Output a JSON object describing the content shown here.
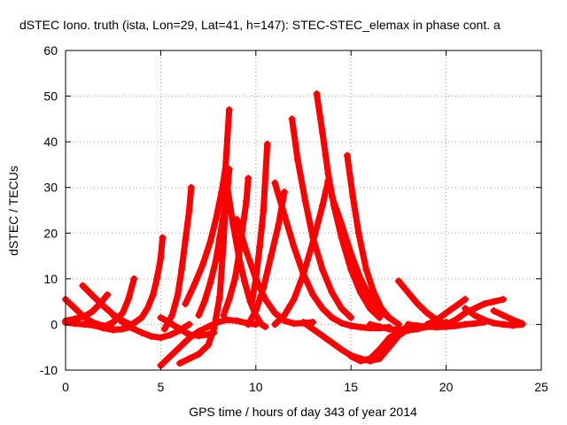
{
  "chart_data": {
    "type": "scatter",
    "title": "dSTEC Iono. truth (ista, Lon=29, Lat=41, h=147): STEC-STEC_elemax in phase cont. a",
    "xlabel": "GPS time / hours of day 343 of year 2014",
    "ylabel": "dSTEC  / TECUs",
    "xlim": [
      0,
      25
    ],
    "ylim": [
      -10,
      60
    ],
    "xticks": [
      0,
      5,
      10,
      15,
      20,
      25
    ],
    "yticks": [
      -10,
      0,
      10,
      20,
      30,
      40,
      50,
      60
    ],
    "grid": true,
    "legend": "none",
    "marker": "+",
    "color": "#ff0000",
    "series": [
      {
        "x": [
          0.0,
          0.5,
          1.0,
          1.5,
          2.0,
          2.4
        ],
        "y": [
          5.5,
          3.5,
          1.5,
          0.3,
          -0.3,
          -0.5
        ]
      },
      {
        "x": [
          0.0,
          0.5,
          1.0,
          1.5,
          2.0,
          2.5,
          3.0,
          3.5
        ],
        "y": [
          0.4,
          0.2,
          0.0,
          -0.2,
          -0.8,
          -1.2,
          -1.0,
          -0.5
        ]
      },
      {
        "x": [
          0.0,
          0.5,
          1.0,
          1.4,
          1.8,
          2.2
        ],
        "y": [
          0.8,
          1.2,
          1.8,
          2.8,
          4.5,
          6.5
        ]
      },
      {
        "x": [
          0.9,
          1.5,
          2.0,
          2.5,
          3.0,
          3.4
        ],
        "y": [
          8.5,
          6.0,
          4.0,
          2.2,
          0.8,
          0.0
        ]
      },
      {
        "x": [
          2.0,
          2.5,
          3.0,
          3.3,
          3.6
        ],
        "y": [
          -0.5,
          0.5,
          2.5,
          5.5,
          10.0
        ]
      },
      {
        "x": [
          2.5,
          3.0,
          3.5,
          4.0,
          4.5,
          5.0,
          5.5,
          6.0,
          6.5
        ],
        "y": [
          2.0,
          0.5,
          -0.8,
          -1.8,
          -2.6,
          -2.9,
          -2.3,
          -1.3,
          0.0
        ]
      },
      {
        "x": [
          3.5,
          4.0,
          4.3,
          4.6,
          4.8,
          5.0,
          5.1
        ],
        "y": [
          0.0,
          1.5,
          3.5,
          6.5,
          10.0,
          14.5,
          19.0
        ]
      },
      {
        "x": [
          5.0,
          5.5,
          6.0,
          6.5,
          7.0,
          7.5,
          7.8
        ],
        "y": [
          1.5,
          0.3,
          -1.0,
          -2.2,
          -2.5,
          -2.2,
          -1.8
        ]
      },
      {
        "x": [
          5.0,
          5.5,
          6.0,
          6.5,
          7.0,
          7.5,
          8.0,
          8.5,
          9.0,
          9.5,
          10.0
        ],
        "y": [
          -9.0,
          -7.0,
          -5.0,
          -3.0,
          -1.5,
          -0.5,
          0.5,
          1.0,
          0.8,
          0.3,
          0.0
        ]
      },
      {
        "x": [
          5.2,
          5.6,
          5.9,
          6.1,
          6.3,
          6.5,
          6.6
        ],
        "y": [
          -1.0,
          2.0,
          6.5,
          12.0,
          18.5,
          25.0,
          30.0
        ]
      },
      {
        "x": [
          6.0,
          6.5,
          7.0,
          7.5,
          7.8,
          8.1,
          8.3,
          8.5
        ],
        "y": [
          -8.5,
          -7.5,
          -6.5,
          -4.5,
          -1.0,
          6.0,
          18.0,
          34.0
        ]
      },
      {
        "x": [
          6.3,
          6.8,
          7.2,
          7.6,
          7.9,
          8.2,
          8.4,
          8.6
        ],
        "y": [
          4.5,
          9.0,
          13.0,
          18.0,
          23.0,
          29.0,
          34.0,
          47.0
        ]
      },
      {
        "x": [
          7.0,
          7.3,
          7.6,
          7.9,
          8.1,
          8.3,
          8.5,
          8.6
        ],
        "y": [
          2.0,
          5.0,
          9.0,
          14.0,
          19.0,
          24.0,
          29.0,
          34.0
        ]
      },
      {
        "x": [
          8.5,
          8.8,
          9.1,
          9.4,
          9.7,
          10.0,
          10.3,
          10.5
        ],
        "y": [
          30.0,
          22.0,
          15.0,
          9.5,
          5.0,
          2.0,
          0.0,
          -0.5
        ]
      },
      {
        "x": [
          8.3,
          8.6,
          8.9,
          9.1,
          9.3,
          9.5,
          9.6
        ],
        "y": [
          2.0,
          5.5,
          10.0,
          15.0,
          21.0,
          27.0,
          32.0
        ]
      },
      {
        "x": [
          9.0,
          9.5,
          10.0,
          10.5,
          11.0,
          11.5,
          12.0,
          12.5,
          13.0
        ],
        "y": [
          23.0,
          16.0,
          10.0,
          5.5,
          2.5,
          0.8,
          0.2,
          0.3,
          0.5
        ]
      },
      {
        "x": [
          9.8,
          10.0,
          10.2,
          10.4,
          10.6
        ],
        "y": [
          5.0,
          10.0,
          17.0,
          25.0,
          39.5
        ]
      },
      {
        "x": [
          9.6,
          10.0,
          10.4,
          10.8,
          11.2,
          11.5
        ],
        "y": [
          0.0,
          3.0,
          8.0,
          15.0,
          22.0,
          29.0
        ]
      },
      {
        "x": [
          11.0,
          11.5,
          12.0,
          12.5,
          13.0,
          13.5,
          14.0,
          14.5,
          15.0,
          15.5,
          16.0,
          16.5,
          17.0
        ],
        "y": [
          31.0,
          24.0,
          17.0,
          11.0,
          6.5,
          3.5,
          1.5,
          0.3,
          -0.3,
          -0.6,
          -0.8,
          -0.8,
          -0.6
        ]
      },
      {
        "x": [
          11.9,
          12.2,
          12.6,
          13.0,
          13.5,
          14.0,
          14.5,
          15.0
        ],
        "y": [
          45.0,
          36.0,
          27.0,
          19.0,
          12.0,
          7.0,
          3.5,
          1.5
        ]
      },
      {
        "x": [
          13.2,
          13.5,
          13.8,
          14.1,
          14.5,
          15.0,
          15.5,
          16.0,
          16.5
        ],
        "y": [
          50.5,
          42.0,
          33.0,
          26.0,
          19.0,
          12.0,
          7.0,
          3.5,
          1.5
        ]
      },
      {
        "x": [
          11.0,
          11.5,
          12.0,
          12.5,
          13.0,
          13.5,
          13.8
        ],
        "y": [
          0.0,
          2.0,
          5.5,
          11.0,
          18.0,
          26.0,
          31.5
        ]
      },
      {
        "x": [
          12.5,
          13.0,
          13.5,
          14.0,
          14.5,
          15.0,
          15.5,
          16.0,
          16.5,
          17.0,
          17.5,
          18.0
        ],
        "y": [
          0.5,
          -1.0,
          -2.5,
          -4.0,
          -5.5,
          -6.8,
          -7.5,
          -8.0,
          -7.5,
          -5.0,
          -2.5,
          -1.0
        ]
      },
      {
        "x": [
          14.8,
          15.1,
          15.4,
          15.8,
          16.2,
          16.6,
          17.0,
          17.5
        ],
        "y": [
          37.0,
          28.0,
          20.0,
          12.0,
          7.0,
          3.5,
          1.5,
          0.0
        ]
      },
      {
        "x": [
          14.0,
          14.5,
          15.0,
          15.5,
          16.0,
          16.5,
          17.0
        ],
        "y": [
          28.0,
          22.0,
          15.5,
          10.0,
          6.0,
          3.0,
          1.5
        ]
      },
      {
        "x": [
          15.0,
          15.5,
          16.0,
          16.5,
          17.0,
          17.5,
          18.0
        ],
        "y": [
          -7.0,
          -8.0,
          -7.5,
          -5.5,
          -3.0,
          -1.5,
          -0.5
        ]
      },
      {
        "x": [
          16.0,
          16.5,
          17.0,
          17.5,
          18.0,
          18.5,
          19.0,
          19.5,
          20.0
        ],
        "y": [
          0.0,
          -0.5,
          -1.0,
          -1.2,
          -1.3,
          -1.0,
          -0.5,
          0.0,
          0.5
        ]
      },
      {
        "x": [
          17.5,
          18.0,
          18.5,
          19.0,
          19.5,
          20.0
        ],
        "y": [
          9.5,
          7.0,
          4.5,
          2.5,
          1.0,
          0.0
        ]
      },
      {
        "x": [
          18.0,
          18.5,
          19.0,
          19.5,
          20.0,
          20.5,
          21.0,
          21.5,
          22.0
        ],
        "y": [
          0.0,
          -0.3,
          -0.5,
          -0.6,
          -0.5,
          -0.3,
          0.0,
          0.2,
          0.5
        ]
      },
      {
        "x": [
          19.0,
          19.5,
          20.0,
          20.5,
          21.0
        ],
        "y": [
          0.0,
          1.0,
          2.5,
          4.0,
          5.5
        ]
      },
      {
        "x": [
          20.0,
          20.5,
          21.0,
          21.5,
          22.0,
          22.5,
          23.0
        ],
        "y": [
          0.0,
          1.0,
          2.5,
          3.5,
          4.5,
          5.0,
          5.5
        ]
      },
      {
        "x": [
          21.0,
          21.5,
          22.0,
          22.5,
          23.0,
          23.5,
          24.0
        ],
        "y": [
          3.5,
          2.0,
          1.0,
          0.3,
          0.0,
          -0.2,
          0.0
        ]
      },
      {
        "x": [
          22.5,
          23.0,
          23.5,
          24.0
        ],
        "y": [
          3.0,
          2.0,
          1.0,
          0.2
        ]
      }
    ]
  }
}
